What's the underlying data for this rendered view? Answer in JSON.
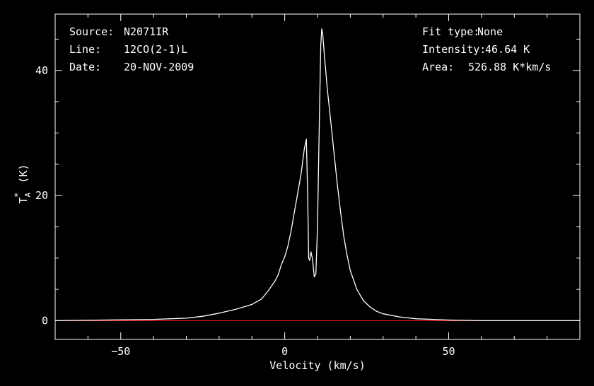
{
  "header": {
    "source_label": "Source:",
    "source_value": "N2071IR",
    "line_label": "Line:",
    "line_value": "12CO(2-1)L",
    "date_label": "Date:",
    "date_value": "20-NOV-2009",
    "fit_label": "Fit type:",
    "fit_value": "None",
    "intensity_label": "Intensity:",
    "intensity_value": "46.64 K",
    "area_label": "Area:",
    "area_value": "526.88 K*km/s"
  },
  "colors": {
    "background": "#000000",
    "foreground": "#ffffff",
    "baseline": "#ff2020"
  },
  "chart_data": {
    "type": "line",
    "xlabel": "Velocity (km/s)",
    "ylabel": "T*A (K)",
    "xlim": [
      -70,
      90
    ],
    "ylim": [
      -3,
      49
    ],
    "xticks": [
      -50,
      0,
      50
    ],
    "yticks": [
      0,
      20,
      40
    ],
    "baseline": 0,
    "series": [
      {
        "x": [
          -70,
          -40,
          -30,
          -25,
          -20,
          -15,
          -10,
          -7,
          -5,
          -3,
          -2,
          -1,
          0,
          1,
          2,
          3,
          4,
          5,
          6,
          6.6,
          7,
          7.3,
          7.6,
          8,
          8.5,
          9,
          9.5,
          10,
          10.5,
          11,
          11.3,
          11.6,
          12,
          13,
          14,
          15,
          16,
          17,
          18,
          19,
          20,
          22,
          24,
          26,
          28,
          30,
          35,
          40,
          50,
          60,
          70,
          80,
          90
        ],
        "y": [
          0.0,
          0.2,
          0.4,
          0.7,
          1.2,
          1.8,
          2.6,
          3.5,
          4.8,
          6.3,
          7.3,
          9.0,
          10.2,
          12.0,
          14.5,
          17.5,
          20.5,
          23.5,
          27.5,
          29.0,
          20.0,
          10.0,
          9.6,
          11.0,
          9.8,
          7.0,
          7.5,
          15.0,
          30.0,
          44.0,
          46.64,
          45.8,
          43.0,
          37.0,
          32.0,
          27.0,
          22.0,
          17.5,
          13.5,
          10.5,
          8.0,
          5.0,
          3.2,
          2.2,
          1.5,
          1.1,
          0.6,
          0.3,
          0.1,
          0.0,
          0.0,
          0.0,
          0.0
        ]
      }
    ]
  }
}
